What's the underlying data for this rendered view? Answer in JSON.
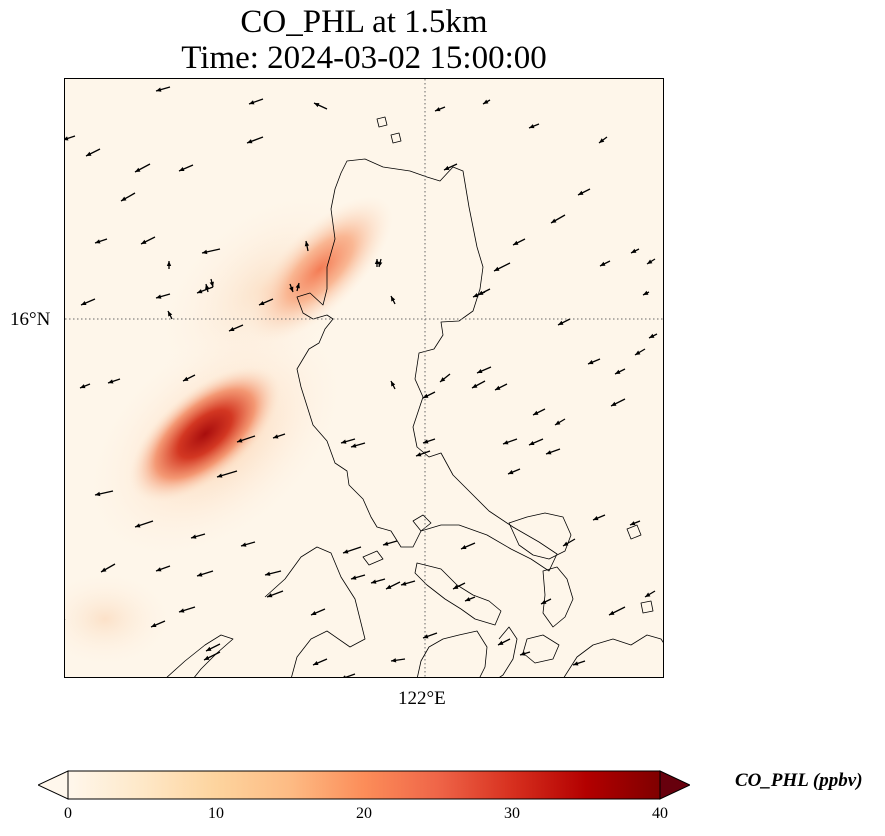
{
  "title": "CO_PHL at 1.5km",
  "subtitle": "Time: 2024-03-02 15:00:00",
  "gridlines": {
    "latitude_label": "16°N",
    "longitude_label": "122°E",
    "style": "dotted"
  },
  "colorbar": {
    "label": "CO_PHL (ppbv)",
    "ticks": [
      "0",
      "10",
      "20",
      "30",
      "40"
    ],
    "min": 0,
    "max": 40,
    "extend": "both",
    "colormap": "OrRd",
    "colors": [
      "#fff7ec",
      "#fee8c8",
      "#fdd49e",
      "#fdbb84",
      "#fc8d59",
      "#ef6548",
      "#d7301f",
      "#b30000",
      "#7f0000"
    ]
  },
  "plumes": [
    {
      "name": "western-offshore-plume",
      "max_ppbv": 34
    },
    {
      "name": "northern-luzon-plume",
      "max_ppbv": 20
    }
  ],
  "wind_vectors": "black arrows, predominantly from the east-northeast"
}
